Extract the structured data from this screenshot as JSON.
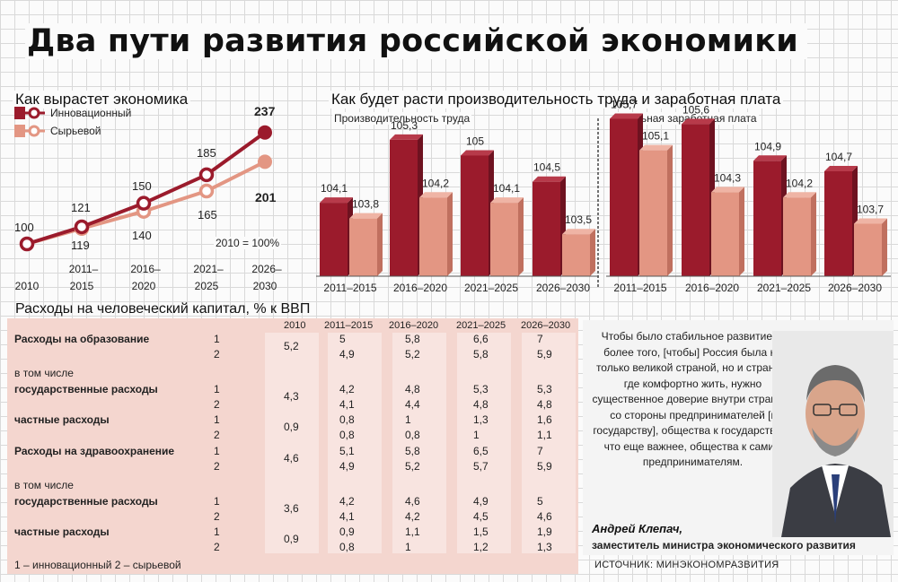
{
  "title": "Два пути развития российской экономики",
  "colors": {
    "dark_red": "#9b1b2c",
    "salmon": "#e39683",
    "table_bg": "#f4d6cf"
  },
  "growth": {
    "heading": "Как вырастет экономика",
    "legend": [
      "Инновационный",
      "Сырьевой"
    ],
    "note": "2010 = 100%"
  },
  "bars": {
    "heading": "Как будет расти производительность труда и заработная плата",
    "sub_productivity": "Производительность труда",
    "sub_wage": "Реальная заработная плата"
  },
  "chart_data": [
    {
      "type": "line",
      "title": "Как вырастет экономика",
      "categories": [
        "2010",
        "2011–2015",
        "2016–2020",
        "2021–2025",
        "2026–2030"
      ],
      "series": [
        {
          "name": "Инновационный",
          "values": [
            100,
            121,
            150,
            185,
            237
          ]
        },
        {
          "name": "Сырьевой",
          "values": [
            100,
            119,
            140,
            165,
            201
          ]
        }
      ]
    },
    {
      "type": "bar",
      "title": "Производительность труда",
      "categories": [
        "2011–2015",
        "2016–2020",
        "2021–2025",
        "2026–2030"
      ],
      "series": [
        {
          "name": "Инновационный",
          "values": [
            104.1,
            105.3,
            105,
            104.5
          ]
        },
        {
          "name": "Сырьевой",
          "values": [
            103.8,
            104.2,
            104.1,
            103.5
          ]
        }
      ]
    },
    {
      "type": "bar",
      "title": "Реальная заработная плата",
      "categories": [
        "2011–2015",
        "2016–2020",
        "2021–2025",
        "2026–2030"
      ],
      "series": [
        {
          "name": "Инновационный",
          "values": [
            105.7,
            105.6,
            104.9,
            104.7
          ]
        },
        {
          "name": "Сырьевой",
          "values": [
            105.1,
            104.3,
            104.2,
            103.7
          ]
        }
      ]
    },
    {
      "type": "table",
      "title": "Расходы на человеческий капитал, % к ВВП",
      "columns": [
        "2010",
        "2011–2015",
        "2016–2020",
        "2021–2025",
        "2026–2030"
      ],
      "rows": [
        {
          "label": "Расходы на образование",
          "bold": true,
          "base": "5,2",
          "r1": [
            "5",
            "5,8",
            "6,6",
            "7"
          ],
          "r2": [
            "4,9",
            "5,2",
            "5,8",
            "5,9"
          ]
        },
        {
          "pre": "в том числе",
          "label": "государственные расходы",
          "bold": true,
          "base": "4,3",
          "r1": [
            "4,2",
            "4,8",
            "5,3",
            "5,3"
          ],
          "r2": [
            "4,1",
            "4,4",
            "4,8",
            "4,8"
          ]
        },
        {
          "label": "частные расходы",
          "bold": true,
          "base": "0,9",
          "r1": [
            "0,8",
            "1",
            "1,3",
            "1,6"
          ],
          "r2": [
            "0,8",
            "0,8",
            "1",
            "1,1"
          ]
        },
        {
          "label": "Расходы на здравоохранение",
          "bold": true,
          "base": "4,6",
          "r1": [
            "5,1",
            "5,8",
            "6,5",
            "7"
          ],
          "r2": [
            "4,9",
            "5,2",
            "5,7",
            "5,9"
          ]
        },
        {
          "pre": "в том числе",
          "label": "государственные расходы",
          "bold": true,
          "base": "3,6",
          "r1": [
            "4,2",
            "4,6",
            "4,9",
            "5"
          ],
          "r2": [
            "4,1",
            "4,2",
            "4,5",
            "4,6"
          ]
        },
        {
          "label": "частные расходы",
          "bold": true,
          "base": "0,9",
          "r1": [
            "0,9",
            "1,1",
            "1,5",
            "1,9"
          ],
          "r2": [
            "0,8",
            "1",
            "1,2",
            "1,3"
          ]
        }
      ],
      "scenario_labels": [
        "1",
        "2"
      ],
      "note": "1 – инновационный   2 – сырьевой"
    }
  ],
  "quote": {
    "text": "Чтобы было стабильное развитие и, более того, [чтобы] Россия была не только великой страной, но и страной, где комфортно жить, нужно существенное доверие внутри страны – со стороны предпринимателей [к государству], общества к государству и, что еще важнее, общества к самим предпринимателям.",
    "name": "Андрей Клепач,",
    "role": "заместитель министра экономического развития"
  },
  "source": "ИСТОЧНИК: МИНЭКОНОМРАЗВИТИЯ"
}
